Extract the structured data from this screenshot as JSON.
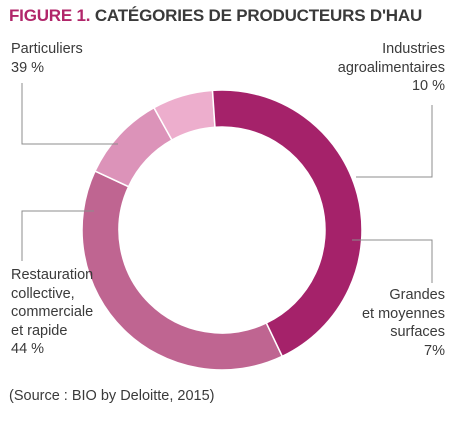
{
  "figure": {
    "number": "FIGURE 1.",
    "title": "CATÉGORIES DE PRODUCTEURS D'HAU"
  },
  "source": "(Source : BIO by Deloitte, 2015)",
  "chart_data": {
    "type": "pie",
    "donut": true,
    "title": "FIGURE 1. CATÉGORIES DE PRODUCTEURS D'HAU",
    "slices": [
      {
        "key": "particuliers",
        "name": "Particuliers",
        "value": 39,
        "value_label": "39 %",
        "color": "#bf6591"
      },
      {
        "key": "industries",
        "name": "Industries agroalimentaires",
        "value": 10,
        "value_label": "10 %",
        "color": "#dc93b9"
      },
      {
        "key": "grandes",
        "name": "Grandes et moyennes surfaces",
        "value": 7,
        "value_label": "7%",
        "color": "#edaecd"
      },
      {
        "key": "restauration",
        "name": "Restauration collective, commerciale et rapide",
        "value": 44,
        "value_label": "44 %",
        "color": "#a5226a"
      }
    ],
    "labels": {
      "particuliers": [
        "Particuliers",
        "39 %"
      ],
      "industries": [
        "Industries",
        "agroalimentaires",
        "10 %"
      ],
      "grandes": [
        "Grandes",
        "et moyennes",
        "surfaces",
        "7%"
      ],
      "restauration": [
        "Restauration",
        "collective,",
        "commerciale",
        "et rapide",
        "44 %"
      ]
    },
    "leader_line_color": "#8c8c8c"
  }
}
